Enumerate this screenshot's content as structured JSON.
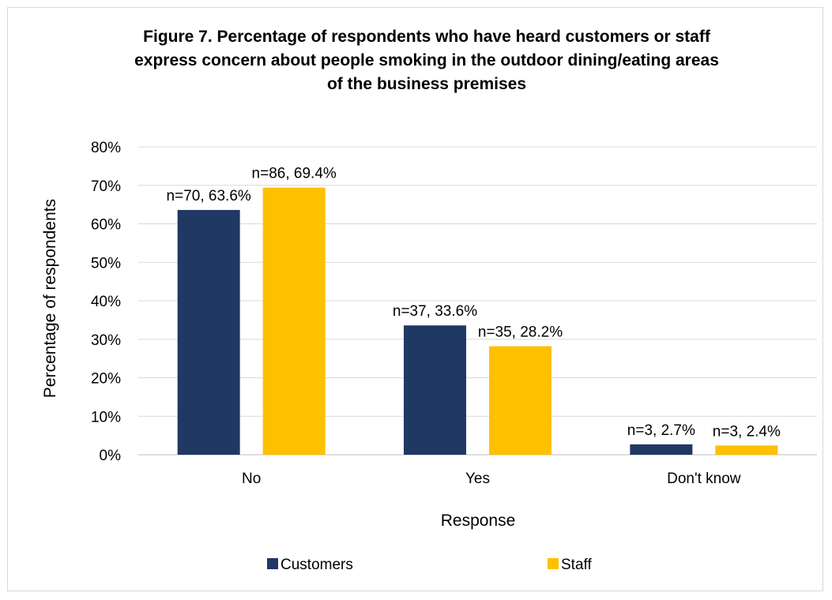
{
  "chart_data": {
    "type": "bar",
    "title_lines": [
      "Figure 7. Percentage of respondents who have heard customers or staff",
      "express concern about people smoking in the outdoor dining/eating areas",
      "of the business premises"
    ],
    "xlabel": "Response",
    "ylabel": "Percentage of respondents",
    "categories": [
      "No",
      "Yes",
      "Don't know"
    ],
    "ylim": [
      0,
      80
    ],
    "yticks": [
      0,
      10,
      20,
      30,
      40,
      50,
      60,
      70,
      80
    ],
    "ytick_suffix": "%",
    "grid": true,
    "legend_position": "bottom",
    "series": [
      {
        "name": "Customers",
        "color": "#203864",
        "values": [
          63.6,
          33.6,
          2.7
        ],
        "labels": [
          "n=70, 63.6%",
          "n=37, 33.6%",
          "n=3, 2.7%"
        ]
      },
      {
        "name": "Staff",
        "color": "#ffc000",
        "values": [
          69.4,
          28.2,
          2.4
        ],
        "labels": [
          "n=86, 69.4%",
          "n=35, 28.2%",
          "n=3, 2.4%"
        ]
      }
    ]
  }
}
